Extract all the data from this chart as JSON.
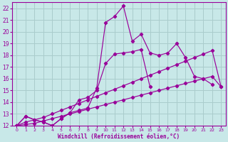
{
  "xlabel": "Windchill (Refroidissement éolien,°C)",
  "ylabel": "",
  "bg_color": "#c8e8e8",
  "grid_color": "#aacccc",
  "line_color": "#990099",
  "xlim": [
    -0.5,
    23.5
  ],
  "ylim": [
    12,
    22.5
  ],
  "xticks": [
    0,
    1,
    2,
    3,
    4,
    5,
    6,
    7,
    8,
    9,
    10,
    11,
    12,
    13,
    14,
    15,
    16,
    17,
    18,
    19,
    20,
    21,
    22,
    23
  ],
  "yticks": [
    12,
    13,
    14,
    15,
    16,
    17,
    18,
    19,
    20,
    21,
    22
  ],
  "series": [
    {
      "x": [
        0,
        1,
        2,
        3,
        4,
        5,
        6,
        7,
        8,
        9,
        10,
        11,
        12,
        13,
        14,
        15,
        16,
        17,
        18,
        19,
        20,
        21,
        22
      ],
      "y": [
        12.0,
        12.8,
        12.5,
        12.3,
        12.0,
        12.6,
        13.1,
        13.3,
        13.5,
        15.2,
        20.8,
        21.3,
        22.2,
        19.2,
        19.8,
        18.2,
        18.0,
        18.2,
        19.0,
        17.8,
        16.2,
        16.0,
        15.5
      ]
    },
    {
      "x": [
        0,
        1,
        2,
        3,
        4,
        5,
        6,
        7,
        8,
        9,
        10,
        11,
        12,
        13,
        14,
        15,
        16,
        17,
        18,
        19,
        20,
        21,
        22,
        23
      ],
      "y": [
        12.0,
        12.3,
        12.5,
        12.7,
        13.0,
        13.3,
        13.6,
        13.9,
        14.2,
        14.5,
        14.8,
        15.1,
        15.4,
        15.7,
        16.0,
        16.3,
        16.6,
        16.9,
        17.2,
        17.5,
        17.8,
        18.1,
        18.4,
        15.3
      ]
    },
    {
      "x": [
        0,
        1,
        2,
        3,
        4,
        5,
        6,
        7,
        8,
        9,
        10,
        11,
        12,
        13,
        14,
        15,
        16,
        17,
        18,
        19,
        20,
        21,
        22,
        23
      ],
      "y": [
        12.0,
        12.1,
        12.2,
        12.4,
        12.6,
        12.8,
        13.0,
        13.2,
        13.4,
        13.6,
        13.8,
        14.0,
        14.2,
        14.4,
        14.6,
        14.8,
        15.0,
        15.2,
        15.4,
        15.6,
        15.8,
        16.0,
        16.2,
        15.3
      ]
    },
    {
      "x": [
        0,
        1,
        2,
        3,
        4,
        5,
        6,
        7,
        8,
        9,
        10,
        11,
        12,
        13,
        14,
        15
      ],
      "y": [
        12.0,
        12.8,
        12.5,
        12.3,
        12.0,
        12.6,
        13.1,
        14.2,
        14.4,
        15.0,
        17.3,
        18.1,
        18.2,
        18.3,
        18.5,
        15.3
      ]
    }
  ]
}
